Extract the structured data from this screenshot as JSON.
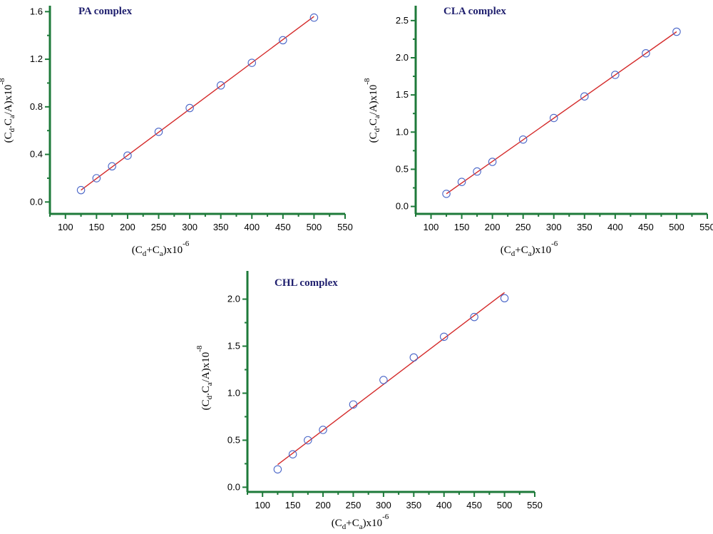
{
  "colors": {
    "axis": "#1e7a3a",
    "fit_line": "#d42a2a",
    "marker": "#4a66c8",
    "title": "#1f1f6e"
  },
  "chart_data": [
    {
      "type": "scatter",
      "title": "PA complex",
      "x_axis": {
        "label_main": "(C",
        "sub1": "d",
        "mid": "+C",
        "sub2": "a",
        "tail": ")x10",
        "sup": "-6",
        "range": [
          75,
          550
        ],
        "ticks": [
          "100",
          "150",
          "200",
          "250",
          "300",
          "350",
          "400",
          "450",
          "500",
          "550"
        ]
      },
      "y_axis": {
        "label_main": "(C",
        "sub1": "d",
        "mid": ".C",
        "sub2": "a",
        "tail": "/A)x10",
        "sup": "-8",
        "range": [
          -0.1,
          1.65
        ],
        "ticks": [
          "0.0",
          "0.4",
          "0.8",
          "1.2",
          "1.6"
        ]
      },
      "series": [
        {
          "x": [
            125,
            150,
            175,
            200,
            250,
            300,
            350,
            400,
            450,
            500
          ],
          "y": [
            0.1,
            0.2,
            0.3,
            0.39,
            0.59,
            0.79,
            0.98,
            1.17,
            1.36,
            1.55
          ]
        }
      ],
      "fit": {
        "x": [
          125,
          500
        ],
        "y": [
          0.1,
          1.56
        ]
      },
      "grid": false
    },
    {
      "type": "scatter",
      "title": "CLA complex",
      "x_axis": {
        "label_main": "(C",
        "sub1": "d",
        "mid": "+C",
        "sub2": "a",
        "tail": ")x10",
        "sup": "-6",
        "range": [
          75,
          550
        ],
        "ticks": [
          "100",
          "150",
          "200",
          "250",
          "300",
          "350",
          "400",
          "450",
          "500",
          "550"
        ]
      },
      "y_axis": {
        "label_main": "(C",
        "sub1": "d",
        "mid": ".C",
        "sub2": "a",
        "tail": "/A)x10",
        "sup": "-8",
        "range": [
          -0.1,
          2.7
        ],
        "ticks": [
          "0.0",
          "0.5",
          "1.0",
          "1.5",
          "2.0",
          "2.5"
        ]
      },
      "series": [
        {
          "x": [
            125,
            150,
            175,
            200,
            250,
            300,
            350,
            400,
            450,
            500
          ],
          "y": [
            0.17,
            0.33,
            0.47,
            0.6,
            0.9,
            1.19,
            1.48,
            1.77,
            2.06,
            2.35
          ]
        }
      ],
      "fit": {
        "x": [
          125,
          500
        ],
        "y": [
          0.17,
          2.35
        ]
      },
      "grid": false
    },
    {
      "type": "scatter",
      "title": "CHL complex",
      "x_axis": {
        "label_main": "(C",
        "sub1": "d",
        "mid": "+C",
        "sub2": "a",
        "tail": ")x10",
        "sup": "-6",
        "range": [
          75,
          550
        ],
        "ticks": [
          "100",
          "150",
          "200",
          "250",
          "300",
          "350",
          "400",
          "450",
          "500",
          "550"
        ]
      },
      "y_axis": {
        "label_main": "(C",
        "sub1": "d",
        "mid": ".C",
        "sub2": "a",
        "tail": "/A)x10",
        "sup": "-8",
        "range": [
          -0.05,
          2.3
        ],
        "ticks": [
          "0.0",
          "0.5",
          "1.0",
          "1.5",
          "2.0"
        ]
      },
      "series": [
        {
          "x": [
            125,
            150,
            175,
            200,
            250,
            300,
            350,
            400,
            450,
            500
          ],
          "y": [
            0.19,
            0.35,
            0.5,
            0.61,
            0.88,
            1.14,
            1.38,
            1.6,
            1.81,
            2.01
          ]
        }
      ],
      "fit": {
        "x": [
          125,
          500
        ],
        "y": [
          0.24,
          2.07
        ]
      },
      "grid": false
    }
  ]
}
